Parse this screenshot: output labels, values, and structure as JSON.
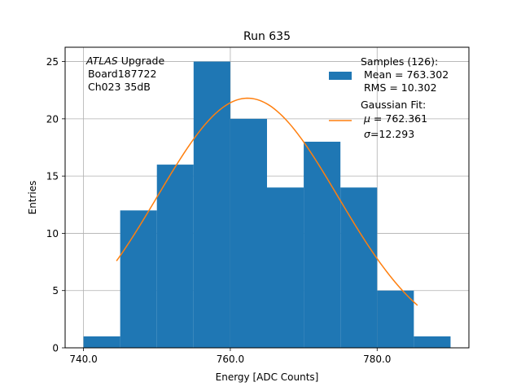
{
  "chart_data": {
    "type": "bar",
    "title": "Run 635",
    "xlabel": "Energy [ADC Counts]",
    "ylabel": "Entries",
    "xlim": [
      737.5,
      792.5
    ],
    "ylim": [
      0,
      26.25
    ],
    "x_ticks": [
      740,
      760,
      780
    ],
    "x_tick_labels": [
      "740.0",
      "760.0",
      "780.0"
    ],
    "y_ticks": [
      0,
      5,
      10,
      15,
      20,
      25
    ],
    "y_tick_labels": [
      "0",
      "5",
      "10",
      "15",
      "20",
      "25"
    ],
    "grid": true,
    "bar_color": "#1f77b4",
    "fit_color": "#ff7f0e",
    "bins": [
      {
        "left": 740,
        "right": 745,
        "count": 1
      },
      {
        "left": 745,
        "right": 750,
        "count": 12
      },
      {
        "left": 750,
        "right": 755,
        "count": 16
      },
      {
        "left": 755,
        "right": 760,
        "count": 25
      },
      {
        "left": 760,
        "right": 765,
        "count": 20
      },
      {
        "left": 765,
        "right": 770,
        "count": 14
      },
      {
        "left": 770,
        "right": 775,
        "count": 18
      },
      {
        "left": 775,
        "right": 780,
        "count": 14
      },
      {
        "left": 780,
        "right": 785,
        "count": 5
      },
      {
        "left": 785,
        "right": 790,
        "count": 1
      }
    ],
    "fit": {
      "mu": 762.361,
      "sigma": 12.293,
      "amplitude": 21.8,
      "x_range": [
        744.5,
        785.5
      ]
    },
    "annotation": {
      "italic": "ATLAS",
      "line1_rest": " Upgrade",
      "line2": " Board187722",
      "line3": " Ch023 35dB"
    },
    "legend": {
      "placement": "upper right",
      "samples": {
        "l1": "Samples (126):",
        "l2": " Mean = 763.302",
        "l3": " RMS = 10.302"
      },
      "fit": {
        "l1": "Gaussian Fit:",
        "l2_sym": "μ",
        "l2_rest": " = 762.361",
        "l3_sym": "σ",
        "l3_rest": "=12.293"
      }
    }
  }
}
